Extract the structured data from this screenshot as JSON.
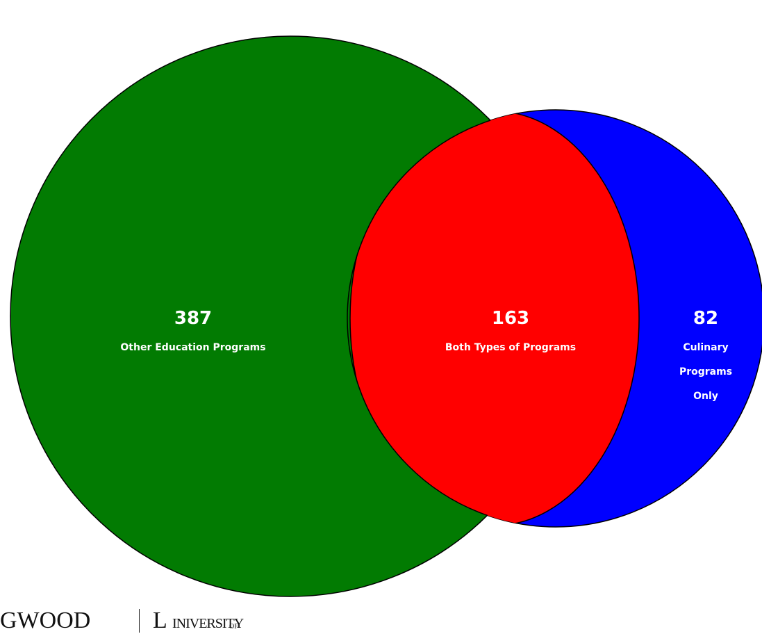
{
  "diagram": {
    "type": "venn",
    "sets": [
      {
        "value": "387",
        "label": "Other Education Programs",
        "color": "#027b02"
      },
      {
        "value": "163",
        "label": "Both Types of Programs",
        "color": "#ff0000"
      },
      {
        "value": "82",
        "label_lines": [
          "Culinary",
          "Programs",
          "Only"
        ],
        "color": "#0000ff"
      }
    ]
  },
  "footer": {
    "part1": "GWOOD",
    "part2": "L",
    "part3": "INIVERSITY",
    "part4": "OF"
  }
}
